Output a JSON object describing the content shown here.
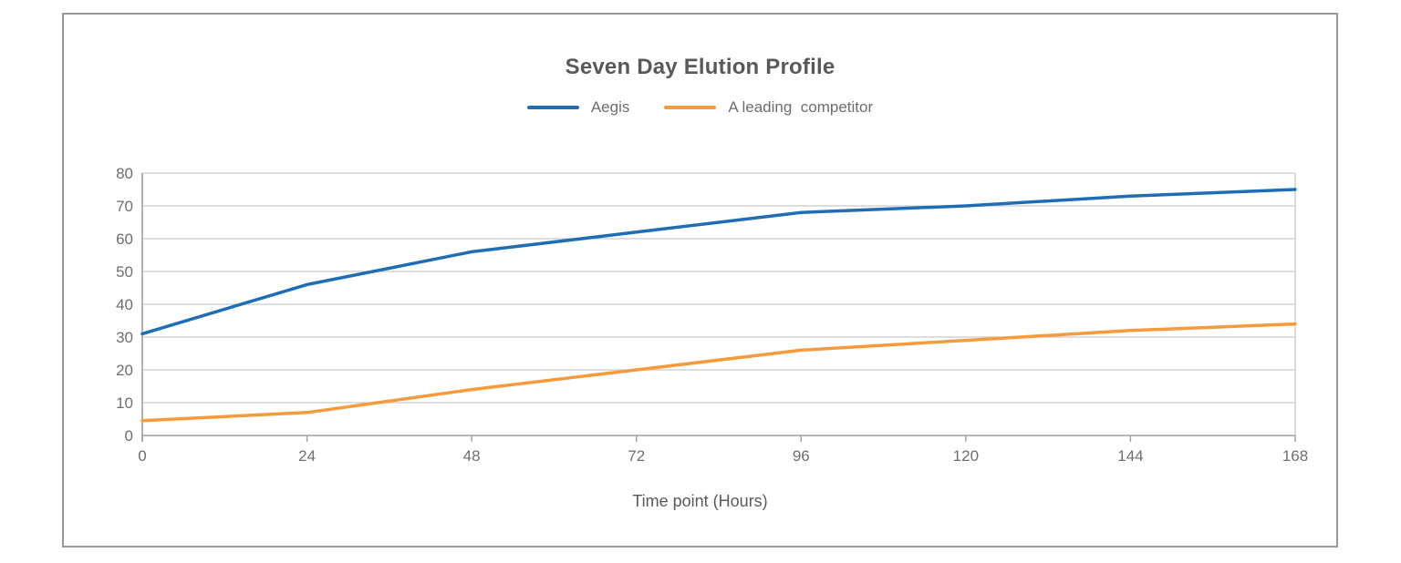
{
  "window": {
    "background": "#ffffff",
    "frame_border_color": "#98999c"
  },
  "chart_data": {
    "type": "line",
    "title": "Seven Day Elution Profile",
    "xlabel": "Time point (Hours)",
    "ylabel": "",
    "x": [
      0,
      24,
      48,
      72,
      96,
      120,
      144,
      168
    ],
    "xtick_labels": [
      "0",
      "24",
      "48",
      "72",
      "96",
      "120",
      "144",
      "168"
    ],
    "series": [
      {
        "name": "Aegis",
        "color": "#1f6eb5",
        "values": [
          31,
          46,
          56,
          62,
          68,
          70,
          73,
          75
        ]
      },
      {
        "name": "A leading  competitor",
        "color": "#f59b3c",
        "values": [
          4.5,
          7,
          14,
          20,
          26,
          29,
          32,
          34
        ]
      }
    ],
    "xlim": [
      0,
      168
    ],
    "ylim": [
      0,
      80
    ],
    "yticks": [
      0,
      10,
      20,
      30,
      40,
      50,
      60,
      70,
      80
    ],
    "grid": true,
    "gridline_color": "#c9cacb",
    "axis_line_color": "#9d9ea1",
    "tick_label_color": "#6d6e70",
    "legend_position": "top"
  }
}
